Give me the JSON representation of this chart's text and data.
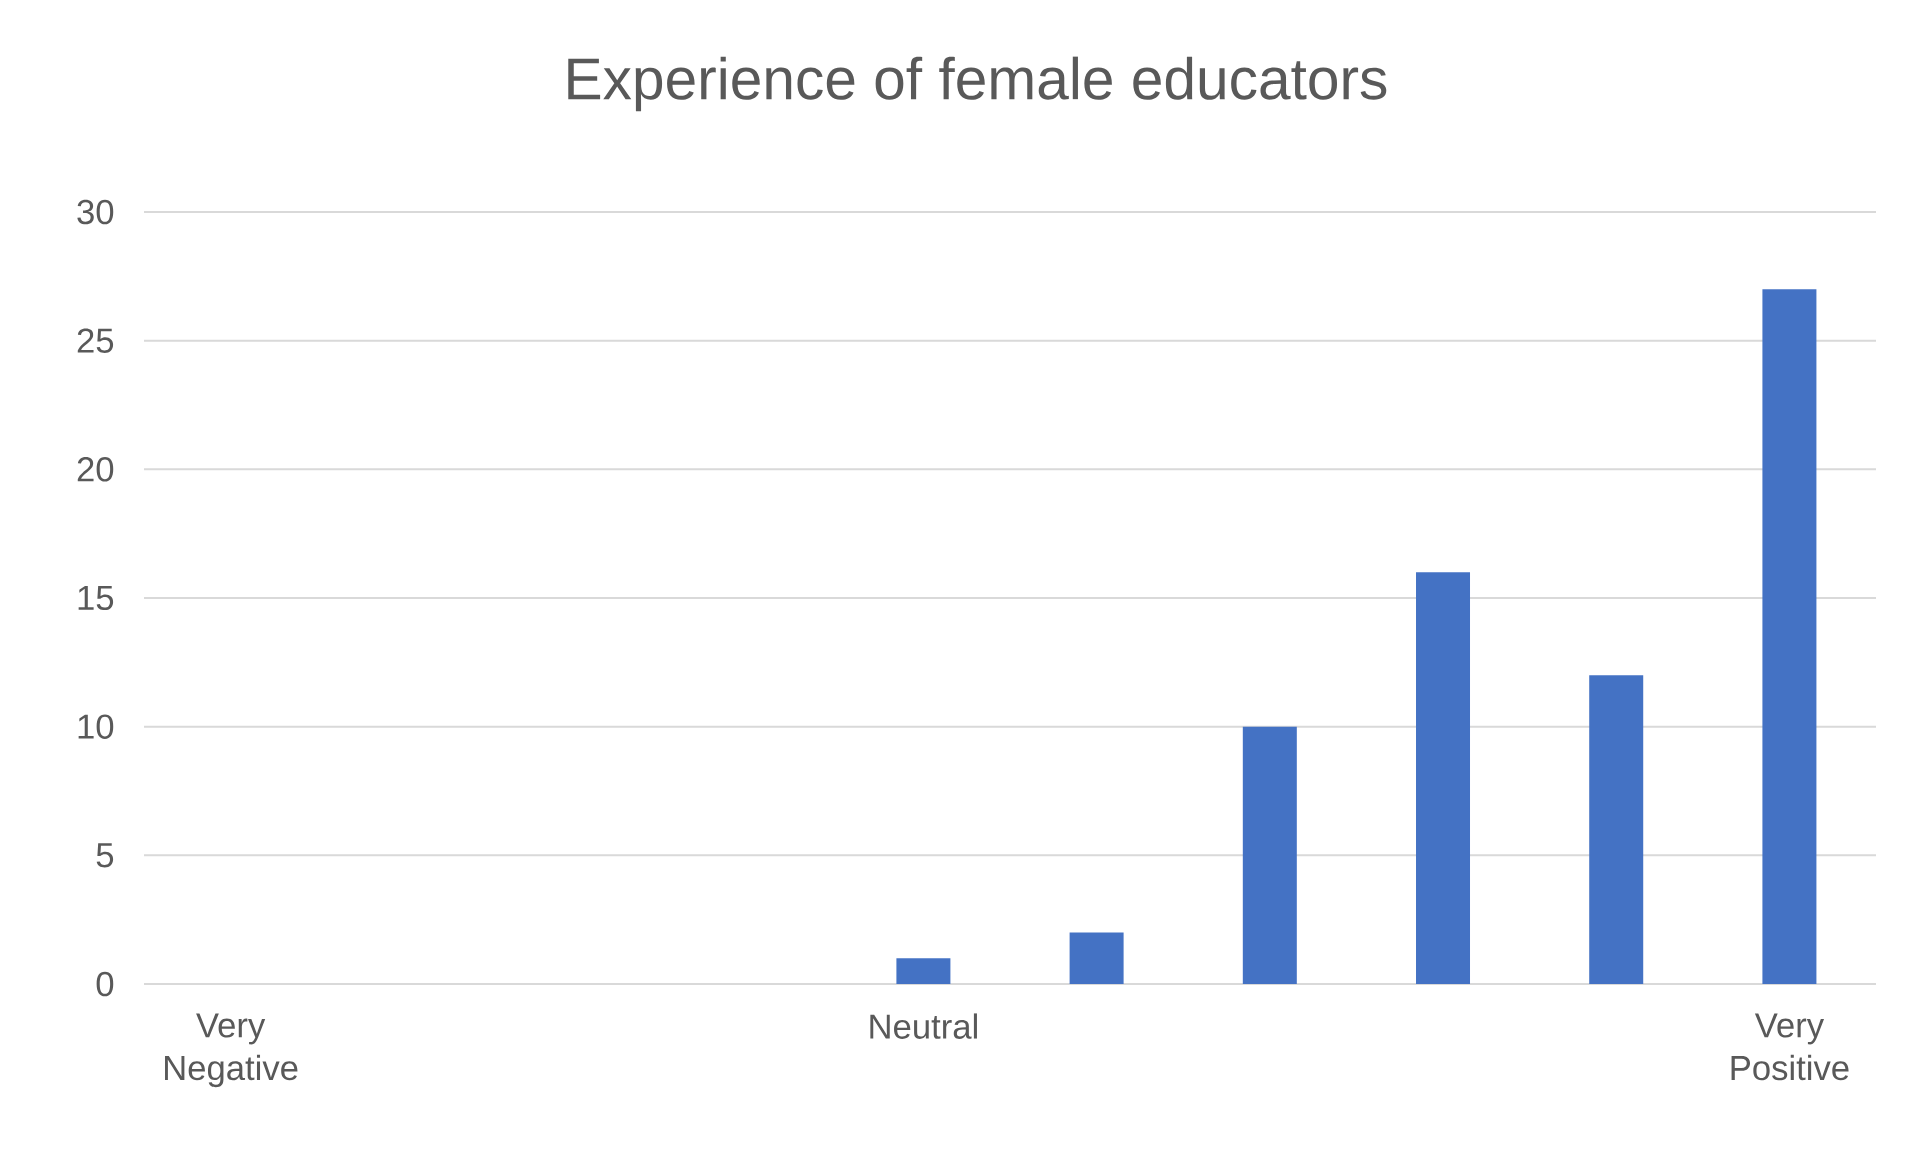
{
  "chart_data": {
    "type": "bar",
    "title": "Experience of female educators",
    "categories": [
      "Very Negative",
      null,
      null,
      null,
      "Neutral",
      null,
      null,
      null,
      null,
      "Very Positive"
    ],
    "values": [
      0,
      0,
      0,
      0,
      1,
      2,
      10,
      16,
      12,
      27
    ],
    "color": "#4472c4",
    "ylim": [
      0,
      30
    ],
    "yticks": [
      0,
      5,
      10,
      15,
      20,
      25,
      30
    ],
    "grid": "y"
  }
}
